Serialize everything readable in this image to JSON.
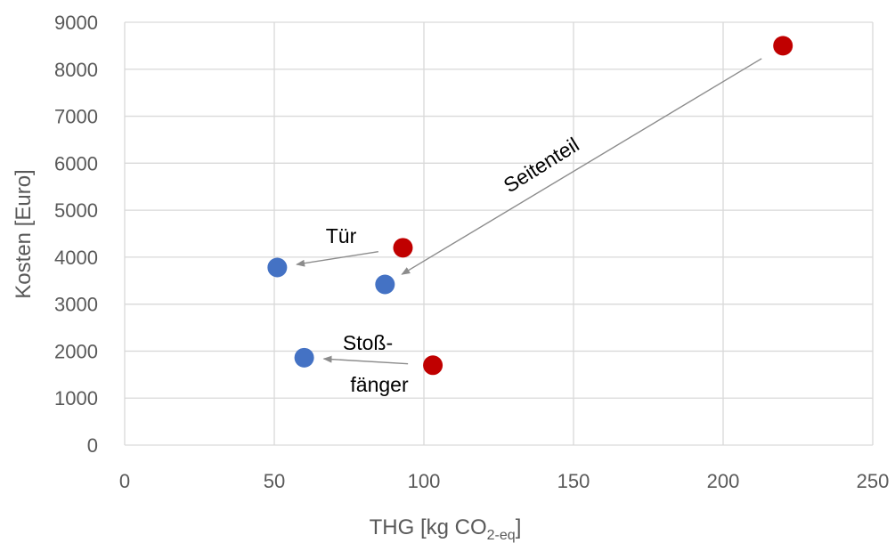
{
  "chart_data": {
    "type": "scatter",
    "xlabel": "THG [kg CO",
    "xlabel_sub": "2-eq",
    "xlabel_end": "]",
    "ylabel": "Kosten [Euro]",
    "xlim": [
      0,
      250
    ],
    "ylim": [
      0,
      9000
    ],
    "x_ticks": [
      0,
      50,
      100,
      150,
      200,
      250
    ],
    "y_ticks": [
      0,
      1000,
      2000,
      3000,
      4000,
      5000,
      6000,
      7000,
      8000,
      9000
    ],
    "grid": true,
    "legend": "none",
    "series": [
      {
        "color": "#c00000",
        "points": [
          {
            "x": 220,
            "y": 8500
          },
          {
            "x": 93,
            "y": 4200
          },
          {
            "x": 103,
            "y": 1700
          }
        ]
      },
      {
        "color": "#4472c4",
        "points": [
          {
            "x": 51,
            "y": 3780
          },
          {
            "x": 87,
            "y": 3420
          },
          {
            "x": 60,
            "y": 1860
          }
        ]
      }
    ],
    "annotations": [
      {
        "text": "Seitenteil",
        "from": [
          220,
          8500
        ],
        "to": [
          87,
          3420
        ]
      },
      {
        "text": "Tür",
        "from": [
          93,
          4200
        ],
        "to": [
          51,
          3780
        ]
      },
      {
        "text": "Stoß-",
        "text2": "fänger",
        "from": [
          103,
          1700
        ],
        "to": [
          60,
          1860
        ]
      }
    ]
  }
}
